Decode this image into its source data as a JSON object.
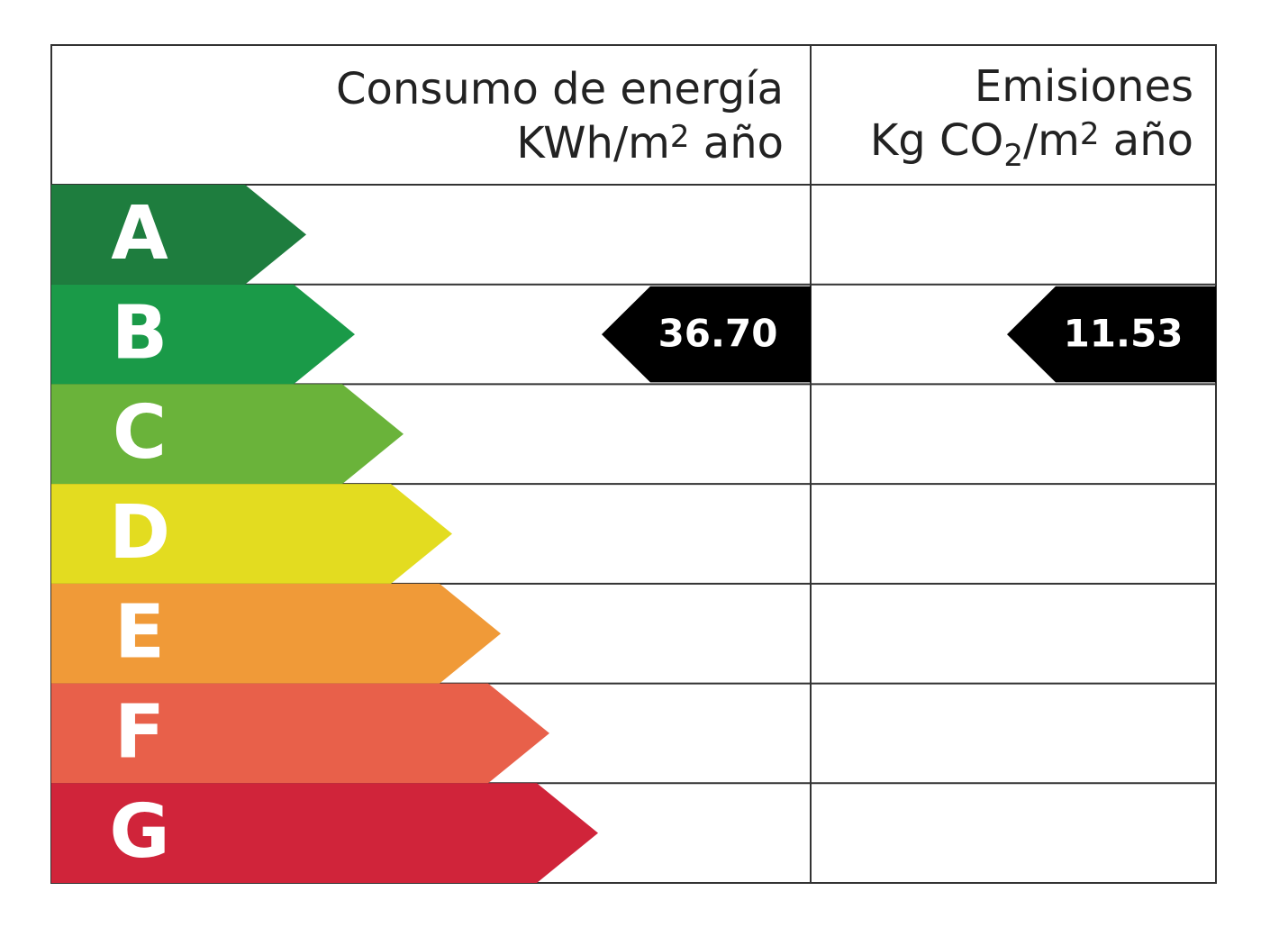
{
  "header": {
    "energy_title": "Consumo de energía",
    "energy_unit": [
      {
        "text": "KWh/m"
      },
      {
        "text": "2",
        "style": "sup"
      },
      {
        "text": " año"
      }
    ],
    "emissions_title": "Emisiones",
    "emissions_unit": [
      {
        "text": "Kg CO"
      },
      {
        "text": "2",
        "style": "sub"
      },
      {
        "text": "/m"
      },
      {
        "text": "2",
        "style": "sup"
      },
      {
        "text": " año"
      }
    ]
  },
  "rows": [
    {
      "letter": "A",
      "color": "#1e7d3e"
    },
    {
      "letter": "B",
      "color": "#1a9a48",
      "energy_value": "36.70",
      "emissions_value": "11.53"
    },
    {
      "letter": "C",
      "color": "#6ab33a"
    },
    {
      "letter": "D",
      "color": "#e3dc20"
    },
    {
      "letter": "E",
      "color": "#f09a38"
    },
    {
      "letter": "F",
      "color": "#e8604a"
    },
    {
      "letter": "G",
      "color": "#d0243a"
    }
  ]
}
